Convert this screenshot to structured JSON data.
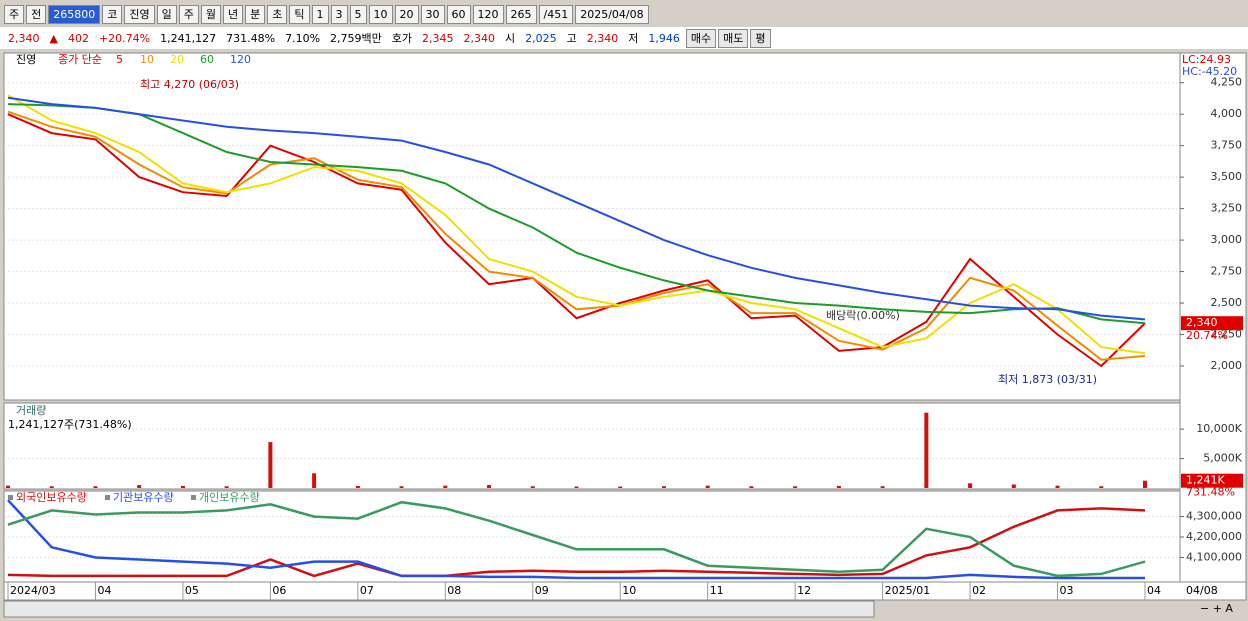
{
  "toolbar": {
    "row1": [
      "주",
      "전",
      "265800",
      "코",
      "진영",
      "일",
      "주",
      "월",
      "년",
      "분",
      "초",
      "틱",
      "1",
      "3",
      "5",
      "10",
      "20",
      "30",
      "60",
      "120",
      "265",
      "/451",
      "2025/04/08"
    ],
    "row2": [
      "2,340",
      "▲",
      "402",
      "+20.74%",
      "1,241,127",
      "731.48%",
      "7.10%",
      "2,759백만",
      "호가",
      "2,345",
      "2,340",
      "시",
      "2,025",
      "고",
      "2,340",
      "저",
      "1,946",
      "매수",
      "매도",
      "평"
    ]
  },
  "chart_data": [
    {
      "type": "line",
      "name": "진영",
      "legend_title": "종가 단순",
      "categories": [
        "2024/03",
        null,
        "04",
        null,
        "05",
        null,
        "06",
        null,
        "07",
        null,
        "08",
        null,
        "09",
        null,
        "10",
        null,
        "11",
        null,
        "12",
        null,
        "2025/01",
        null,
        "02",
        null,
        "03",
        null,
        "04"
      ],
      "last_date": "04/08",
      "series": [
        {
          "name": "5",
          "color": "#e00000",
          "values": [
            4000,
            3850,
            3800,
            3500,
            3380,
            3350,
            3750,
            3620,
            3450,
            3400,
            2980,
            2650,
            2700,
            2380,
            2500,
            2600,
            2680,
            2380,
            2400,
            2120,
            2150,
            2350,
            2850,
            2550,
            2250,
            2000,
            2340
          ]
        },
        {
          "name": "10",
          "color": "#f08c00",
          "values": [
            4020,
            3900,
            3820,
            3600,
            3420,
            3370,
            3600,
            3650,
            3480,
            3420,
            3050,
            2750,
            2700,
            2450,
            2480,
            2580,
            2650,
            2420,
            2420,
            2200,
            2130,
            2300,
            2700,
            2600,
            2320,
            2050,
            2080
          ]
        },
        {
          "name": "20",
          "color": "#f0e000",
          "values": [
            4150,
            3950,
            3850,
            3700,
            3450,
            3380,
            3450,
            3580,
            3550,
            3450,
            3200,
            2850,
            2750,
            2550,
            2480,
            2550,
            2600,
            2500,
            2450,
            2300,
            2150,
            2220,
            2500,
            2650,
            2450,
            2150,
            2100
          ]
        },
        {
          "name": "60",
          "color": "#1e9b2a",
          "values": [
            4080,
            4070,
            4050,
            4000,
            3850,
            3700,
            3620,
            3600,
            3580,
            3550,
            3450,
            3250,
            3100,
            2900,
            2780,
            2680,
            2600,
            2550,
            2500,
            2480,
            2450,
            2430,
            2420,
            2450,
            2460,
            2370,
            2340
          ]
        },
        {
          "name": "120",
          "color": "#2850e0",
          "values": [
            4130,
            4080,
            4050,
            4000,
            3950,
            3900,
            3870,
            3850,
            3820,
            3790,
            3700,
            3600,
            3450,
            3300,
            3150,
            3000,
            2880,
            2780,
            2700,
            2640,
            2580,
            2530,
            2480,
            2460,
            2450,
            2400,
            2370
          ]
        }
      ],
      "ylim": [
        1730,
        4470
      ],
      "yticks": [
        {
          "value": 2000,
          "label": "2,000"
        },
        {
          "value": 2250,
          "label": "2,250"
        },
        {
          "value": 2500,
          "label": "2,500"
        },
        {
          "value": 2750,
          "label": "2,750"
        },
        {
          "value": 3000,
          "label": "3,000"
        },
        {
          "value": 3250,
          "label": "3,250"
        },
        {
          "value": 3500,
          "label": "3,500"
        },
        {
          "value": 3750,
          "label": "3,750"
        },
        {
          "value": 4000,
          "label": "4,000"
        },
        {
          "value": 4250,
          "label": "4,250"
        }
      ],
      "lc": "LC:24.93",
      "hc": "HC:-45.20",
      "last_price": {
        "value": 2340,
        "label": "2,340"
      },
      "change_label": "20.74%",
      "annotations": {
        "high": "최고 4,270 (06/03)",
        "low": "최저 1,873 (03/31)",
        "ex_div": "배당락(0.00%)"
      }
    },
    {
      "type": "bar",
      "title": "거래량",
      "subtitle": "1,241,127주(731.48%)",
      "color": "#d01010",
      "values": [
        400,
        300,
        300,
        500,
        350,
        300,
        7800,
        2500,
        350,
        300,
        400,
        500,
        300,
        250,
        250,
        300,
        400,
        300,
        300,
        350,
        300,
        12800,
        800,
        600,
        400,
        300,
        1241
      ],
      "ylim": [
        0,
        14100
      ],
      "yticks": [
        {
          "value": 5000,
          "label": "5,000K"
        },
        {
          "value": 10000,
          "label": "10,000K"
        }
      ],
      "last_value": {
        "value": 1241,
        "label": "1,241K"
      },
      "ratio_label": "731.48%"
    },
    {
      "type": "line",
      "series": [
        {
          "name": "외국인보유수량",
          "color": "#d01010",
          "values": [
            4015000,
            4010000,
            4010000,
            4010000,
            4010000,
            4010000,
            4090000,
            4010000,
            4070000,
            4010000,
            4010000,
            4030000,
            4035000,
            4030000,
            4030000,
            4035000,
            4030000,
            4025000,
            4020000,
            4015000,
            4020000,
            4110000,
            4150000,
            4250000,
            4330000,
            4340000,
            4330000
          ]
        },
        {
          "name": "기관보유수량",
          "color": "#2850e0",
          "values": [
            4380000,
            4150000,
            4100000,
            4090000,
            4080000,
            4070000,
            4050000,
            4080000,
            4080000,
            4010000,
            4010000,
            4005000,
            4005000,
            4000000,
            4000000,
            4000000,
            4000000,
            4000000,
            4000000,
            4000000,
            4000000,
            4000000,
            4015000,
            4005000,
            4000000,
            4000000,
            4000000
          ]
        },
        {
          "name": "개인보유수량",
          "color": "#3a9a60",
          "values": [
            4260000,
            4330000,
            4310000,
            4320000,
            4320000,
            4330000,
            4360000,
            4300000,
            4290000,
            4370000,
            4340000,
            4280000,
            4210000,
            4140000,
            4140000,
            4140000,
            4060000,
            4050000,
            4040000,
            4030000,
            4040000,
            4240000,
            4200000,
            4060000,
            4010000,
            4020000,
            4080000
          ]
        }
      ],
      "ylim": [
        3990000,
        4420000
      ],
      "yticks": [
        {
          "value": 4100000,
          "label": "4,100,000"
        },
        {
          "value": 4200000,
          "label": "4,200,000"
        },
        {
          "value": 4300000,
          "label": "4,300,000"
        }
      ]
    }
  ]
}
